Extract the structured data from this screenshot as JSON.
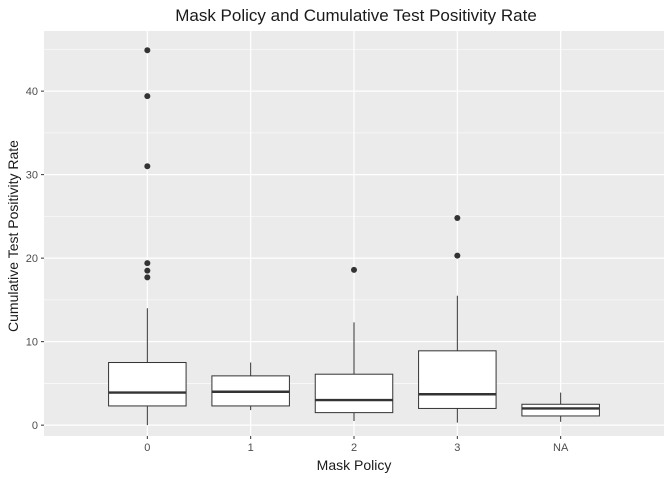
{
  "chart_data": {
    "type": "boxplot",
    "title": "Mask Policy and Cumulative Test Positivity Rate",
    "xlabel": "Mask Policy",
    "ylabel": "Cumulative Test Positivity Rate",
    "categories": [
      "0",
      "1",
      "2",
      "3",
      "NA"
    ],
    "ylim": [
      -1.3,
      47.2
    ],
    "yticks": [
      0,
      10,
      20,
      30,
      40
    ],
    "grid": true,
    "legend": "none",
    "boxes": [
      {
        "category": "0",
        "whisker_low": 0.0,
        "q1": 2.3,
        "median": 3.9,
        "q3": 7.5,
        "whisker_high": 14.0,
        "outliers": [
          17.7,
          18.5,
          19.4,
          31.0,
          39.4,
          44.9
        ]
      },
      {
        "category": "1",
        "whisker_low": 1.8,
        "q1": 2.3,
        "median": 4.0,
        "q3": 5.9,
        "whisker_high": 7.5,
        "outliers": []
      },
      {
        "category": "2",
        "whisker_low": 0.5,
        "q1": 1.5,
        "median": 3.0,
        "q3": 6.1,
        "whisker_high": 12.3,
        "outliers": [
          18.6
        ]
      },
      {
        "category": "3",
        "whisker_low": 0.3,
        "q1": 2.0,
        "median": 3.7,
        "q3": 8.9,
        "whisker_high": 15.5,
        "outliers": [
          20.3,
          24.8
        ]
      },
      {
        "category": "NA",
        "whisker_low": 0.4,
        "q1": 1.1,
        "median": 2.0,
        "q3": 2.5,
        "whisker_high": 3.9,
        "outliers": []
      }
    ],
    "colors": {
      "panel": "#ebebeb",
      "grid_major": "#ffffff",
      "box_fill": "#ffffff",
      "box_line": "#333333",
      "outlier": "#333333"
    }
  }
}
